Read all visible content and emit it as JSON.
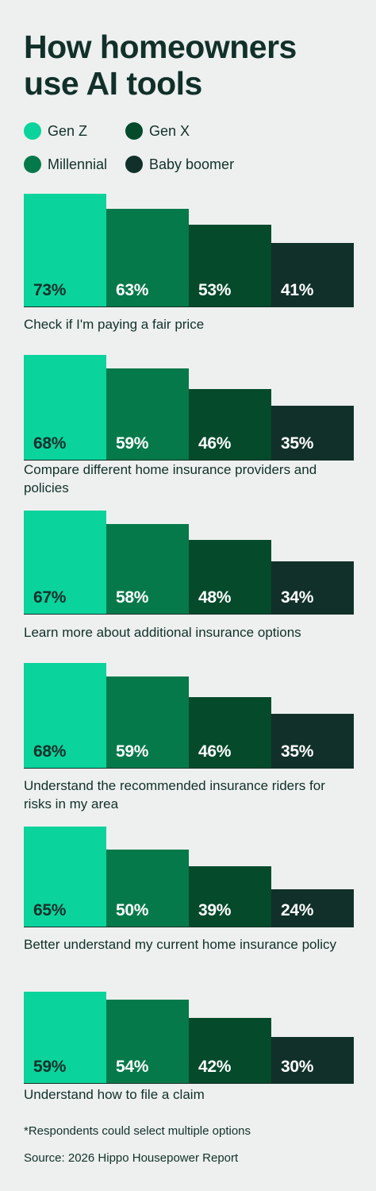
{
  "title": "How homeowners use AI tools",
  "chart_data": {
    "type": "bar",
    "title": "How homeowners use AI tools",
    "series": [
      {
        "name": "Gen Z",
        "color": "#0AD39C"
      },
      {
        "name": "Millennial",
        "color": "#06794A"
      },
      {
        "name": "Gen X",
        "color": "#044A2B"
      },
      {
        "name": "Baby boomer",
        "color": "#12302A"
      }
    ],
    "categories": [
      {
        "label": "Check if I'm paying a fair price",
        "values": [
          73,
          63,
          53,
          41
        ],
        "value_labels": [
          "73%",
          "63%",
          "53%",
          "41%"
        ]
      },
      {
        "label": "Compare different home insurance providers and policies",
        "values": [
          68,
          59,
          46,
          35
        ],
        "value_labels": [
          "68%",
          "59%",
          "46%",
          "35%"
        ]
      },
      {
        "label": "Learn more about additional insurance options",
        "values": [
          67,
          58,
          48,
          34
        ],
        "value_labels": [
          "67%",
          "58%",
          "48%",
          "34%"
        ]
      },
      {
        "label": "Understand the recommended insurance riders for risks in my area",
        "values": [
          68,
          59,
          46,
          35
        ],
        "value_labels": [
          "68%",
          "59%",
          "46%",
          "35%"
        ]
      },
      {
        "label": "Better understand my current home insurance policy",
        "values": [
          65,
          50,
          39,
          24
        ],
        "value_labels": [
          "65%",
          "50%",
          "39%",
          "24%"
        ]
      },
      {
        "label": "Understand how to file a claim",
        "values": [
          59,
          54,
          42,
          30
        ],
        "value_labels": [
          "59%",
          "54%",
          "42%",
          "30%"
        ]
      }
    ],
    "legend_position": "top-left",
    "grid": false
  },
  "footnote": "*Respondents could select multiple options",
  "source": "Source: 2026 Hippo Housepower Report"
}
